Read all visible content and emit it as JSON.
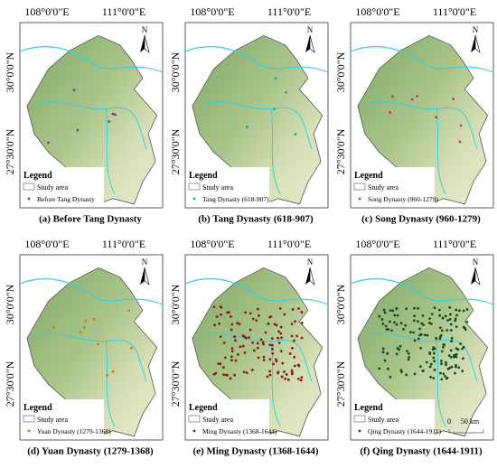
{
  "panels": [
    {
      "caption": "(a) Before Tang Dynasty",
      "lon_labels": [
        "108°0'0\"E",
        "111°0'0\"E"
      ],
      "lat_labels": [
        "30°0'0\"N",
        "27°30'0\"N"
      ],
      "north": "N",
      "legend": {
        "title": "Legend",
        "items": [
          "Study area",
          "Before Tang Dynasty"
        ]
      }
    },
    {
      "caption": "(b) Tang Dynasty (618-907)",
      "lon_labels": [
        "108°0'0\"E",
        "111°0'0\"E"
      ],
      "lat_labels": [
        "30°0'0\"N",
        "27°30'0\"N"
      ],
      "north": "N",
      "legend": {
        "title": "Legend",
        "items": [
          "Study area",
          "Tang Dynasty (618-907)"
        ]
      }
    },
    {
      "caption": "(c) Song Dynasty (960-1279)",
      "lon_labels": [
        "108°0'0\"E",
        "111°0'0\"E"
      ],
      "lat_labels": [
        "30°0'0\"N",
        "27°30'0\"N"
      ],
      "north": "N",
      "legend": {
        "title": "Legend",
        "items": [
          "Study area",
          "Song Dynasty (960-1279)"
        ]
      }
    },
    {
      "caption": "(d) Yuan Dynasty (1279-1368)",
      "lon_labels": [
        "108°0'0\"E",
        "111°0'0\"E"
      ],
      "lat_labels": [
        "30°0'0\"N",
        "27°30'0\"N"
      ],
      "north": "N",
      "legend": {
        "title": "Legend",
        "items": [
          "Study area",
          "Yuan Dynasty (1279-1368)"
        ]
      }
    },
    {
      "caption": "(e) Ming Dynasty (1368-1644)",
      "lon_labels": [
        "108°0'0\"E",
        "111°0'0\"E"
      ],
      "lat_labels": [
        "30°0'0\"N",
        "27°30'0\"N"
      ],
      "north": "N",
      "legend": {
        "title": "Legend",
        "items": [
          "Study area",
          "Ming Dynasty (1368-1644)"
        ]
      }
    },
    {
      "caption": "(f) Qing Dynasty (1644-1911)",
      "lon_labels": [
        "108°0'0\"E",
        "111°0'0\"E"
      ],
      "lat_labels": [
        "30°0'0\"N",
        "27°30'0\"N"
      ],
      "north": "N",
      "legend": {
        "title": "Legend",
        "items": [
          "Study area",
          "Qing Dynasty (1644-1911)"
        ]
      },
      "scale_bar": [
        "0",
        "50 km"
      ]
    }
  ]
}
